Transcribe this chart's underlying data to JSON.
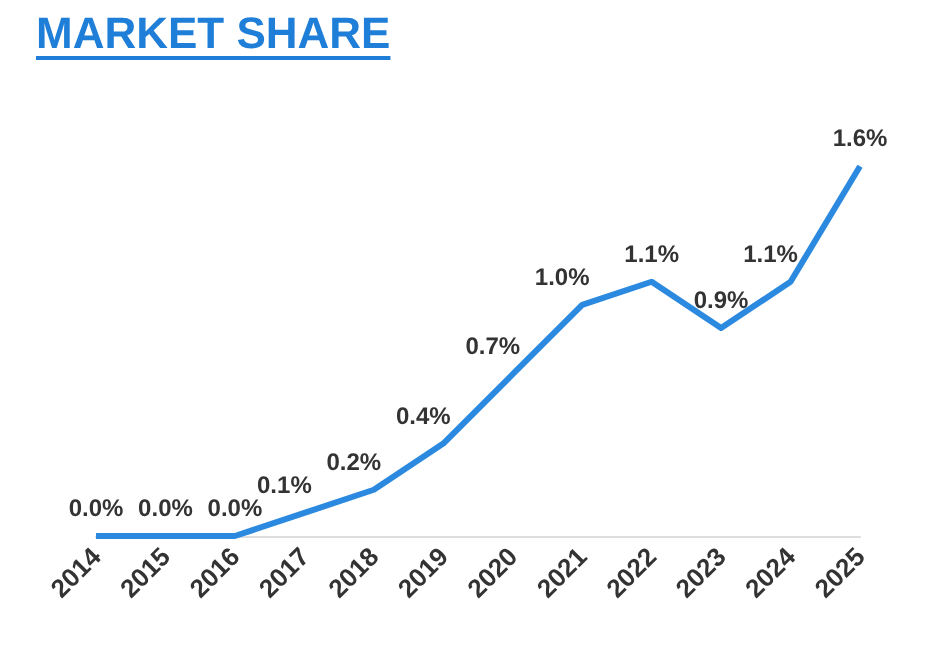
{
  "chart_data": {
    "type": "line",
    "title": "MARKET SHARE",
    "categories": [
      "2014",
      "2015",
      "2016",
      "2017",
      "2018",
      "2019",
      "2020",
      "2021",
      "2022",
      "2023",
      "2024",
      "2025"
    ],
    "values": [
      0.0,
      0.0,
      0.0,
      0.1,
      0.2,
      0.4,
      0.7,
      1.0,
      1.1,
      0.9,
      1.1,
      1.6
    ],
    "value_labels": [
      "0.0%",
      "0.0%",
      "0.0%",
      "0.1%",
      "0.2%",
      "0.4%",
      "0.7%",
      "1.0%",
      "1.1%",
      "0.9%",
      "1.1%",
      "1.6%"
    ],
    "color": "#2b8ae0",
    "marker": "none"
  }
}
